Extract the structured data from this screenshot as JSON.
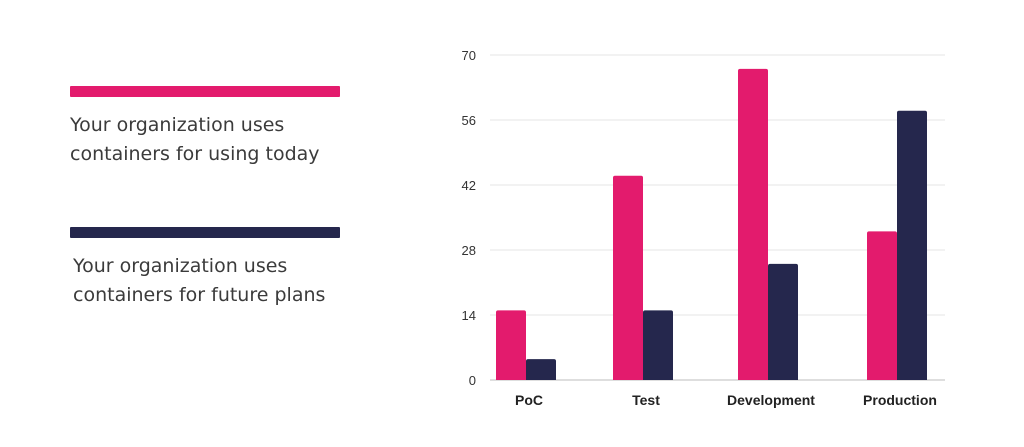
{
  "legend": {
    "items": [
      {
        "label": "Your organization uses containers for using today",
        "color": "#E31B6D"
      },
      {
        "label": "Your organization uses containers for future plans",
        "color": "#25274D"
      }
    ]
  },
  "chart_data": {
    "type": "bar",
    "categories": [
      "PoC",
      "Test",
      "Development",
      "Production"
    ],
    "series": [
      {
        "name": "Your organization uses containers for using today",
        "color": "#E31B6D",
        "values": [
          15,
          44,
          67,
          32
        ]
      },
      {
        "name": "Your organization uses containers for future plans",
        "color": "#25274D",
        "values": [
          4.5,
          15,
          25,
          58
        ]
      }
    ],
    "yticks": [
      0,
      14,
      28,
      42,
      56,
      70
    ],
    "ylim": [
      0,
      70
    ],
    "grid": true,
    "legend_position": "left",
    "title": "",
    "xlabel": "",
    "ylabel": ""
  }
}
